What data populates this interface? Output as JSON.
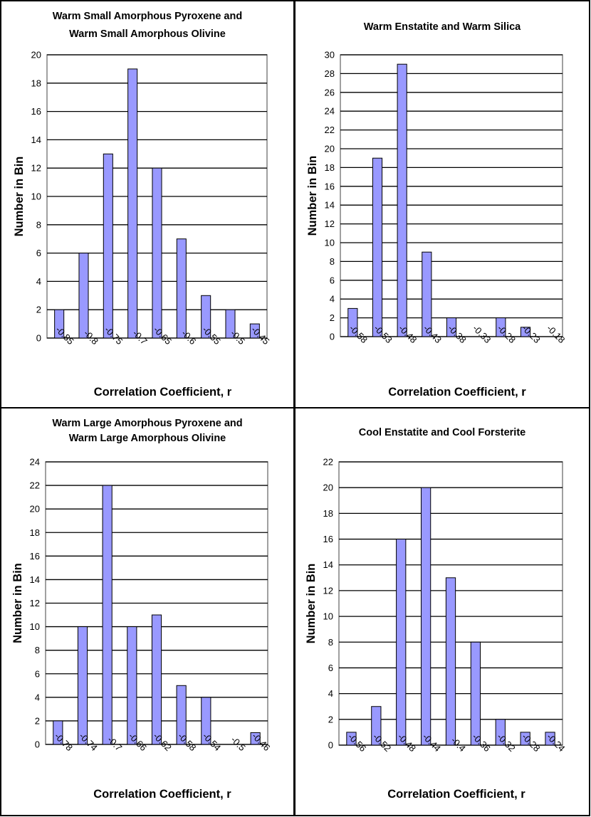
{
  "colors": {
    "bar_fill": "#9999ff",
    "bar_stroke": "#000000",
    "gridline": "#000000",
    "plot_frame": "#808080",
    "background": "#ffffff"
  },
  "chart_data": [
    {
      "type": "bar",
      "title_lines": [
        "Warm Small Amorphous Pyroxene and",
        "Warm Small Amorphous Olivine"
      ],
      "xlabel": "Correlation Coefficient, r",
      "ylabel": "Number in Bin",
      "ylim": [
        0,
        20
      ],
      "ystep": 2,
      "grid": true,
      "tick_labels": [
        "-0.85",
        "-0.8",
        "-0.75",
        "-0.7",
        "-0.65",
        "-0.6",
        "-0.55",
        "-0.5",
        "-0.45"
      ],
      "values": [
        2,
        6,
        13,
        19,
        12,
        7,
        3,
        2,
        1
      ]
    },
    {
      "type": "bar",
      "title_lines": [
        "Warm Enstatite and Warm Silica"
      ],
      "xlabel": "Correlation Coefficient, r",
      "ylabel": "Number in Bin",
      "ylim": [
        0,
        30
      ],
      "ystep": 2,
      "grid": true,
      "tick_labels": [
        "-0.58",
        "-0.53",
        "-0.48",
        "-0.43",
        "-0.38",
        "-0.33",
        "-0.28",
        "-0.23",
        "-0.18"
      ],
      "values": [
        3,
        19,
        29,
        9,
        2,
        0,
        2,
        1,
        0
      ]
    },
    {
      "type": "bar",
      "title_lines": [
        "Warm Large Amorphous Pyroxene and",
        "Warm Large Amorphous Olivine"
      ],
      "xlabel": "Correlation Coefficient, r",
      "ylabel": "Number in Bin",
      "ylim": [
        0,
        24
      ],
      "ystep": 2,
      "grid": true,
      "tick_labels": [
        "-0.78",
        "-0.74",
        "-0.7",
        "-0.66",
        "-0.62",
        "-0.58",
        "-0.54",
        "-0.5",
        "-0.46"
      ],
      "values": [
        2,
        10,
        22,
        10,
        11,
        5,
        4,
        0,
        1
      ]
    },
    {
      "type": "bar",
      "title_lines": [
        "Cool Enstatite and Cool Forsterite"
      ],
      "xlabel": "Correlation Coefficient, r",
      "ylabel": "Number in Bin",
      "ylim": [
        0,
        22
      ],
      "ystep": 2,
      "grid": true,
      "tick_labels": [
        "-0.56",
        "-0.52",
        "-0.48",
        "-0.44",
        "-0.4",
        "-0.36",
        "-0.32",
        "-0.28",
        "-0.24"
      ],
      "values": [
        1,
        3,
        16,
        20,
        13,
        8,
        2,
        1,
        1
      ]
    }
  ]
}
